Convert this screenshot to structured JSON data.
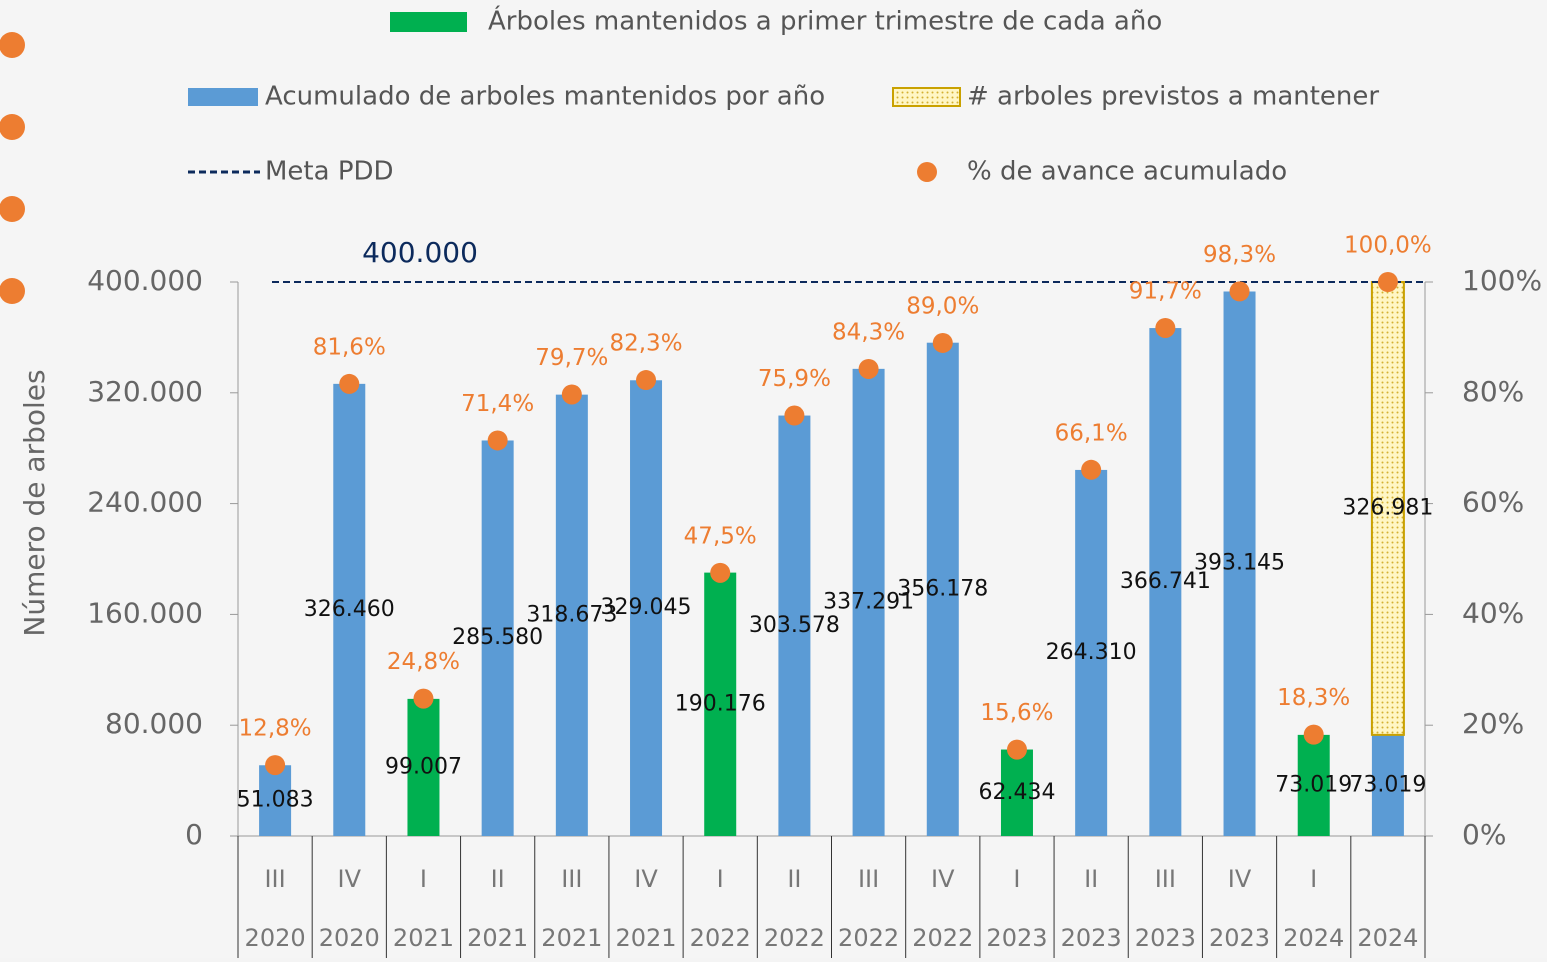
{
  "chart_data": {
    "type": "bar",
    "y_label": "Número de arboles",
    "categories": [
      "III",
      "IV",
      "I",
      "II",
      "III",
      "IV",
      "I",
      "II",
      "III",
      "IV",
      "I",
      "II",
      "III",
      "IV",
      "I",
      null
    ],
    "years": [
      "2020",
      "2020",
      "2021",
      "2021",
      "2021",
      "2021",
      "2022",
      "2022",
      "2022",
      "2022",
      "2023",
      "2023",
      "2023",
      "2023",
      "2024",
      "2024"
    ],
    "ylim": [
      0,
      400000
    ],
    "yticks": [
      0,
      {
        "value": 80000,
        "label": "80.000"
      },
      {
        "value": 160000,
        "label": "160.000"
      },
      {
        "value": 240000,
        "label": "240.000"
      },
      {
        "value": 320000,
        "label": "320.000"
      },
      {
        "value": 400000,
        "label": "400.000"
      }
    ],
    "y2lim": [
      0,
      100
    ],
    "y2ticks": [
      {
        "value": 0,
        "label": "0%"
      },
      {
        "value": 20,
        "label": "20%"
      },
      {
        "value": 40,
        "label": "40%"
      },
      {
        "value": 60,
        "label": "60%"
      },
      {
        "value": 80,
        "label": "80%"
      },
      {
        "value": 100,
        "label": "100%"
      }
    ],
    "series": [
      {
        "name": "Árboles mantenidos a primer trimestre de cada año",
        "kind": "bar",
        "color": "#00b050",
        "values": [
          null,
          null,
          99007,
          null,
          null,
          null,
          190176,
          null,
          null,
          null,
          62434,
          null,
          null,
          null,
          73019,
          null
        ],
        "value_labels": [
          null,
          null,
          "99.007",
          null,
          null,
          null,
          "190.176",
          null,
          null,
          null,
          "62.434",
          null,
          null,
          null,
          "73.019",
          null
        ]
      },
      {
        "name": "Acumulado de arboles mantenidos por año",
        "kind": "bar",
        "color": "#5b9bd5",
        "values": [
          51083,
          326460,
          null,
          285580,
          318673,
          329045,
          null,
          303578,
          337291,
          356178,
          null,
          264310,
          366741,
          393145,
          null,
          73019
        ],
        "value_labels": [
          "51.083",
          "326.460",
          null,
          "285.580",
          "318.673",
          "329.045",
          null,
          "303.578",
          "337.291",
          "356.178",
          null,
          "264.310",
          "366.741",
          "393.145",
          null,
          "73.019"
        ]
      },
      {
        "name": "# arboles previstos a mantener",
        "kind": "stack",
        "stack_on": 1,
        "color": "#c9a100",
        "values": [
          null,
          null,
          null,
          null,
          null,
          null,
          null,
          null,
          null,
          null,
          null,
          null,
          null,
          null,
          null,
          326981
        ],
        "value_labels": [
          null,
          null,
          null,
          null,
          null,
          null,
          null,
          null,
          null,
          null,
          null,
          null,
          null,
          null,
          null,
          "326.981"
        ]
      },
      {
        "name": "Meta PDD",
        "kind": "hline",
        "color": "#0c2a5c",
        "value": 400000,
        "value_label": "400.000"
      },
      {
        "name": "% de avance acumulado",
        "kind": "dots",
        "axis": "y2",
        "color": "#ed7d31",
        "values": [
          12.8,
          81.6,
          24.8,
          71.4,
          79.7,
          82.3,
          47.5,
          75.9,
          84.3,
          89.0,
          15.6,
          66.1,
          91.7,
          98.3,
          18.3,
          100.0
        ],
        "value_labels": [
          "12,8%",
          "81,6%",
          "24,8%",
          "71,4%",
          "79,7%",
          "82,3%",
          "47,5%",
          "75,9%",
          "84,3%",
          "89,0%",
          "15,6%",
          "66,1%",
          "91,7%",
          "98,3%",
          "18,3%",
          "100,0%"
        ]
      }
    ]
  }
}
